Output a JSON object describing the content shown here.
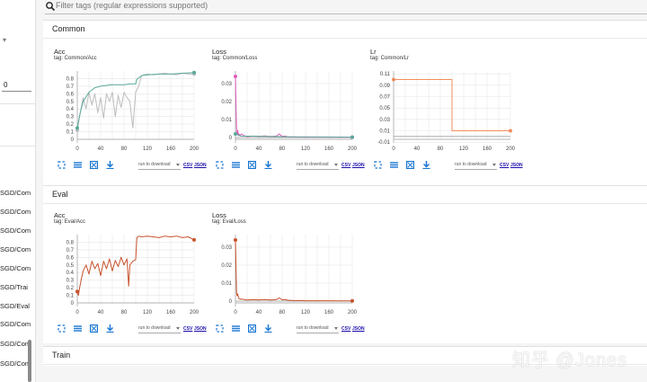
{
  "search": {
    "placeholder": "Filter tags (regular expressions supported)"
  },
  "sidebar": {
    "smoothing_value": "0",
    "runs": [
      "SGD/Com",
      "SGD/Com",
      "SGD/Com",
      "SGD/Com",
      "SGD/Com",
      "SGD/Trai",
      "SGD/Eval",
      "SGD/Com",
      "SGD/Com",
      "SGD/Com"
    ]
  },
  "groups": [
    {
      "name": "Common"
    },
    {
      "name": "Eval"
    },
    {
      "name": "Train"
    }
  ],
  "toolbar": {
    "download_label": "run to download",
    "csv_label": "CSV",
    "json_label": "JSON"
  },
  "watermark": "知乎 @Jones",
  "chart_data": [
    {
      "title": "Acc",
      "tag": "tag: Common/Acc",
      "type": "line",
      "xlim": [
        0,
        200
      ],
      "ylim": [
        0,
        0.9
      ],
      "x_ticks": [
        0,
        40,
        80,
        120,
        160,
        200
      ],
      "y_ticks": [
        0,
        0.1,
        0.2,
        0.3,
        0.4,
        0.5,
        0.6,
        0.7,
        0.8
      ],
      "series": [
        {
          "color": "#bdbdbd",
          "x": [
            0,
            5,
            10,
            15,
            20,
            25,
            30,
            35,
            40,
            45,
            50,
            55,
            60,
            65,
            70,
            75,
            80,
            85,
            90,
            95,
            100,
            105,
            110,
            120,
            130,
            140,
            150,
            160,
            170,
            180,
            190,
            200
          ],
          "y": [
            0.12,
            0.35,
            0.55,
            0.4,
            0.62,
            0.45,
            0.6,
            0.35,
            0.55,
            0.28,
            0.6,
            0.5,
            0.62,
            0.3,
            0.58,
            0.42,
            0.62,
            0.55,
            0.5,
            0.15,
            0.62,
            0.7,
            0.84,
            0.86,
            0.85,
            0.86,
            0.87,
            0.86,
            0.85,
            0.87,
            0.86,
            0.86
          ]
        },
        {
          "color": "#5aa89a",
          "x": [
            0,
            5,
            10,
            20,
            30,
            40,
            50,
            60,
            70,
            80,
            90,
            100,
            102,
            110,
            120,
            140,
            160,
            180,
            200
          ],
          "y": [
            0.15,
            0.35,
            0.5,
            0.62,
            0.68,
            0.7,
            0.71,
            0.72,
            0.72,
            0.72,
            0.73,
            0.73,
            0.79,
            0.84,
            0.85,
            0.86,
            0.86,
            0.87,
            0.88
          ]
        }
      ]
    },
    {
      "title": "Loss",
      "tag": "tag: Common/Loss",
      "type": "line",
      "xlim": [
        0,
        200
      ],
      "ylim": [
        -0.001,
        0.037
      ],
      "x_ticks": [
        0,
        40,
        80,
        120,
        160,
        200
      ],
      "y_ticks": [
        0,
        0.01,
        0.02,
        0.03
      ],
      "series": [
        {
          "color": "#e05cb8",
          "x": [
            0,
            1,
            2,
            3,
            4,
            5,
            6,
            8,
            10,
            15,
            20,
            30,
            40,
            50,
            60,
            70,
            75,
            80,
            85,
            90,
            100,
            120,
            150,
            180,
            200
          ],
          "y": [
            0.034,
            0.02,
            0.004,
            0.002,
            0.004,
            0.001,
            0.002,
            0.001,
            0.002,
            0.001,
            0.0005,
            0.0008,
            0.0006,
            0.0009,
            0.0005,
            0.0008,
            0.002,
            0.0006,
            0.0008,
            0.0004,
            0.0003,
            0.0002,
            0.0002,
            0.0001,
            0.0001
          ]
        },
        {
          "color": "#5aa89a",
          "x": [
            0,
            10,
            50,
            100,
            150,
            200
          ],
          "y": [
            0.002,
            0.0008,
            0.0006,
            0.0004,
            0.0003,
            0.0002
          ]
        }
      ]
    },
    {
      "title": "Lr",
      "tag": "tag: Common/Lr",
      "type": "line",
      "xlim": [
        0,
        200
      ],
      "ylim": [
        -0.005,
        0.115
      ],
      "x_ticks": [
        0,
        40,
        80,
        120,
        160,
        200
      ],
      "y_ticks": [
        0.11,
        0.09,
        0.07,
        0.05,
        0.03,
        0.01,
        -0.01
      ],
      "series": [
        {
          "color": "#f28e5c",
          "x": [
            0,
            100,
            100,
            200
          ],
          "y": [
            0.1,
            0.1,
            0.01,
            0.01
          ]
        }
      ]
    },
    {
      "title": "Acc",
      "tag": "tag: Eval/Acc",
      "type": "line",
      "xlim": [
        0,
        200
      ],
      "ylim": [
        0,
        0.9
      ],
      "x_ticks": [
        0,
        40,
        80,
        120,
        160,
        200
      ],
      "y_ticks": [
        0,
        0.1,
        0.2,
        0.3,
        0.4,
        0.5,
        0.6,
        0.7,
        0.8
      ],
      "series": [
        {
          "color": "#c8522d",
          "x": [
            0,
            2,
            4,
            6,
            8,
            10,
            15,
            20,
            25,
            30,
            35,
            40,
            45,
            50,
            55,
            60,
            65,
            70,
            75,
            80,
            85,
            88,
            90,
            95,
            100,
            102,
            105,
            110,
            120,
            130,
            140,
            150,
            160,
            170,
            180,
            190,
            200
          ],
          "y": [
            0.15,
            0.1,
            0.2,
            0.28,
            0.35,
            0.42,
            0.5,
            0.38,
            0.55,
            0.45,
            0.52,
            0.36,
            0.55,
            0.45,
            0.58,
            0.42,
            0.56,
            0.48,
            0.6,
            0.5,
            0.58,
            0.22,
            0.5,
            0.55,
            0.57,
            0.86,
            0.88,
            0.87,
            0.88,
            0.87,
            0.86,
            0.88,
            0.87,
            0.88,
            0.86,
            0.87,
            0.83
          ]
        }
      ]
    },
    {
      "title": "Loss",
      "tag": "tag: Eval/Loss",
      "type": "line",
      "xlim": [
        0,
        200
      ],
      "ylim": [
        -0.001,
        0.037
      ],
      "x_ticks": [
        0,
        40,
        80,
        120,
        160,
        200
      ],
      "y_ticks": [
        0,
        0.01,
        0.02,
        0.03
      ],
      "series": [
        {
          "color": "#c8522d",
          "x": [
            0,
            1,
            2,
            3,
            4,
            5,
            6,
            8,
            10,
            15,
            20,
            30,
            40,
            50,
            60,
            70,
            75,
            80,
            85,
            90,
            100,
            120,
            150,
            180,
            200
          ],
          "y": [
            0.034,
            0.02,
            0.004,
            0.003,
            0.004,
            0.002,
            0.0015,
            0.001,
            0.0012,
            0.0009,
            0.0006,
            0.0008,
            0.0007,
            0.0009,
            0.0006,
            0.0008,
            0.0018,
            0.0007,
            0.0008,
            0.0005,
            0.0003,
            0.0002,
            0.0002,
            0.0001,
            0.0001
          ]
        }
      ]
    }
  ]
}
